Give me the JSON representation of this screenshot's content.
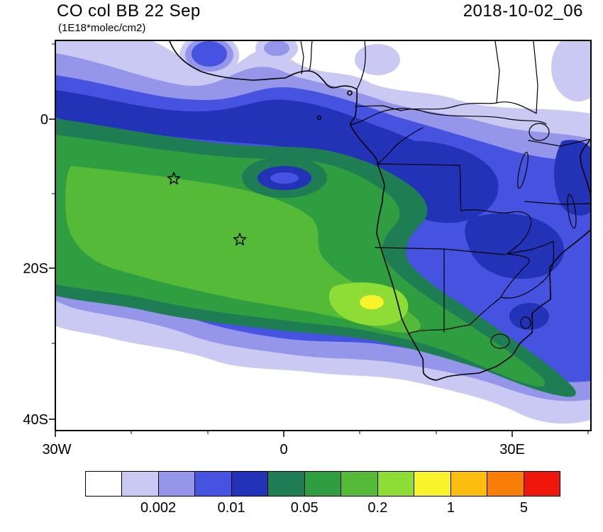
{
  "header": {
    "title": "CO col BB 22 Sep",
    "subtitle": "(1E18*molec/cm2)",
    "datetime": "2018-10-02_06"
  },
  "axes": {
    "y_ticks": [
      {
        "label": "0",
        "lat": 0
      },
      {
        "label": "20S",
        "lat": -20
      },
      {
        "label": "40S",
        "lat": -40
      }
    ],
    "x_ticks": [
      {
        "label": "30W",
        "lon": -30
      },
      {
        "label": "0",
        "lon": 0
      },
      {
        "label": "30E",
        "lon": 30
      }
    ],
    "lon_range": [
      -30,
      40
    ],
    "lat_range": [
      -41.5,
      10.5
    ]
  },
  "colorbar": {
    "colors": [
      "#ffffff",
      "#c9c9f4",
      "#9595ea",
      "#4553e0",
      "#2333b8",
      "#1e7d52",
      "#2f9e41",
      "#55ba38",
      "#8edc36",
      "#f8f32b",
      "#fdbd10",
      "#f97e07",
      "#ef160b"
    ],
    "tick_labels": [
      "0.002",
      "0.01",
      "0.05",
      "0.2",
      "1",
      "5"
    ],
    "labeled_boundaries": [
      2,
      4,
      6,
      8,
      10,
      12
    ]
  },
  "chart_data": {
    "type": "heatmap",
    "title": "CO col BB 22 Sep",
    "units": "1E18*molec/cm2",
    "datetime": "2018-10-02_06",
    "projection": "cylindrical lat-lon map of southern Africa and South Atlantic",
    "lon_range": [
      -30,
      40
    ],
    "lat_range": [
      -41.5,
      10.5
    ],
    "contour_boundaries_labeled": [
      0.002,
      0.01,
      0.05,
      0.2,
      1,
      5
    ],
    "contour_boundaries_all_estimated": [
      0.001,
      0.002,
      0.005,
      0.01,
      0.02,
      0.05,
      0.1,
      0.2,
      0.5,
      1,
      2,
      5
    ],
    "palette": [
      "#ffffff",
      "#c9c9f4",
      "#9595ea",
      "#4553e0",
      "#2333b8",
      "#1e7d52",
      "#2f9e41",
      "#55ba38",
      "#8edc36",
      "#f8f32b",
      "#fdbd10",
      "#f97e07",
      "#ef160b"
    ],
    "legend_position": "bottom horizontal colorbar, 13 cells",
    "grid": false,
    "markers": [
      {
        "type": "star",
        "lon": -14.5,
        "lat": -8
      },
      {
        "type": "star",
        "lon": -6,
        "lat": -16
      }
    ],
    "features": [
      {
        "desc": "Broad CO plume (0.05-0.2) over the South Atlantic between the equator and ~30S, from 30W to the African coast"
      },
      {
        "desc": "Local maximum (0.5-1, yellow) near the Angola/Namibia coast around 12E, 24S with light-green 0.2-0.5 halo"
      },
      {
        "desc": "Plume band sweeps southeast across Namibia/Botswana/South Africa toward 40E, 35S"
      },
      {
        "desc": "Low-CO eye (0.005-0.02, blue) centered near 0E, 8S inside the green plume"
      },
      {
        "desc": "Dark-blue band (0.01-0.02) along 0-5S across the Atlantic into the Congo basin"
      },
      {
        "desc": "Moderate values (0.002-0.05, blues/purples) over central and southeastern Africa"
      },
      {
        "desc": "Two open star markers in the plume at ~(14.5W, 8S) and ~(6W, 16S)"
      }
    ]
  }
}
